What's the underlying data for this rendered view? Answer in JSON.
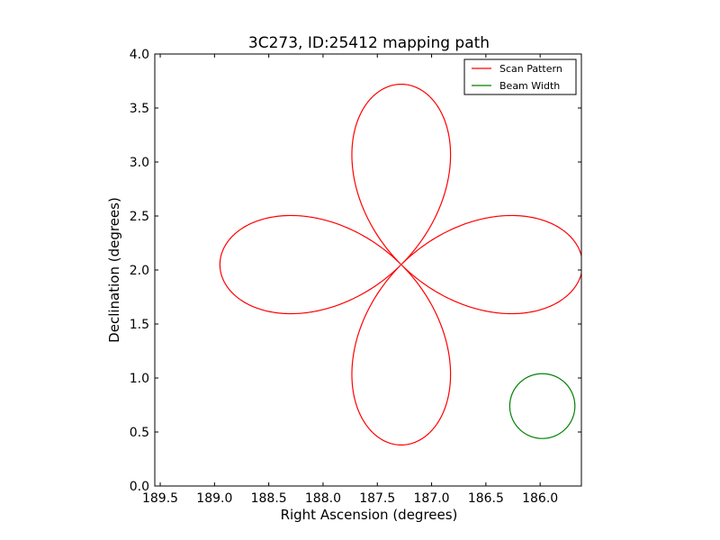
{
  "chart_data": {
    "type": "line",
    "title": "3C273, ID:25412 mapping path",
    "xlabel": "Right Ascension (degrees)",
    "ylabel": "Declination (degrees)",
    "xlim": [
      189.55,
      185.62
    ],
    "ylim": [
      0.0,
      4.0
    ],
    "x_reversed": true,
    "xticks": [
      189.5,
      189.0,
      188.5,
      188.0,
      187.5,
      187.0,
      186.5,
      186.0
    ],
    "xtick_labels": [
      "189.5",
      "189.0",
      "188.5",
      "188.0",
      "187.5",
      "187.0",
      "186.5",
      "186.0"
    ],
    "yticks": [
      0.0,
      0.5,
      1.0,
      1.5,
      2.0,
      2.5,
      3.0,
      3.5,
      4.0
    ],
    "ytick_labels": [
      "0.0",
      "0.5",
      "1.0",
      "1.5",
      "2.0",
      "2.5",
      "3.0",
      "3.5",
      "4.0"
    ],
    "grid": false,
    "legend_position": "top-right",
    "series": [
      {
        "name": "Scan Pattern",
        "color": "#ff0000",
        "shape": "four-petal rose",
        "center": [
          187.28,
          2.05
        ],
        "petal_length": 1.67
      },
      {
        "name": "Beam Width",
        "color": "#008000",
        "shape": "circle",
        "center": [
          185.98,
          0.74
        ],
        "radius": 0.3
      }
    ]
  }
}
